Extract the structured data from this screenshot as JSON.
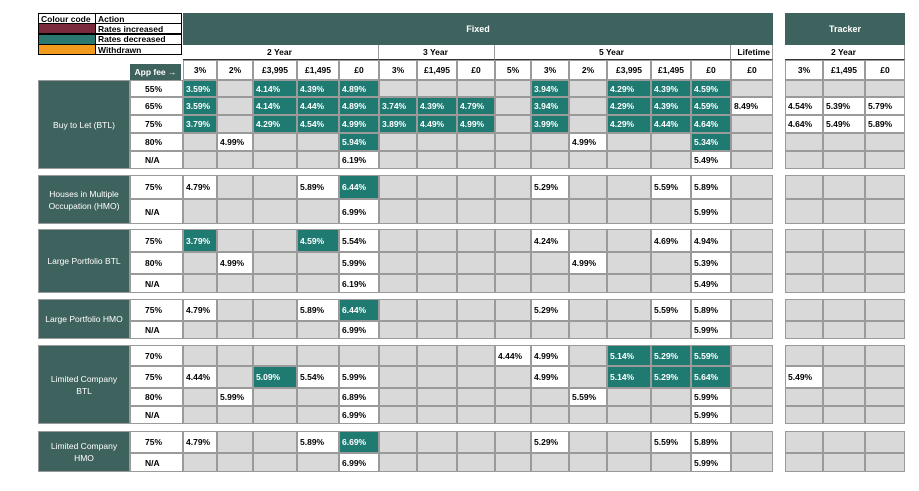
{
  "legend": {
    "title": "Colour code",
    "action_title": "Action",
    "items": [
      {
        "label": "Rates increased",
        "color": "#7a2a3c"
      },
      {
        "label": "Rates decreased",
        "color": "#2a7870"
      },
      {
        "label": "Withdrawn",
        "color": "#f29b1e"
      }
    ]
  },
  "fixed": {
    "title": "Fixed",
    "terms": [
      {
        "label": "2 Year",
        "fees": [
          "3%",
          "2%",
          "£3,995",
          "£1,495",
          "£0"
        ]
      },
      {
        "label": "3 Year",
        "fees": [
          "3%",
          "£1,495",
          "£0"
        ]
      },
      {
        "label": "5 Year",
        "fees": [
          "5%",
          "3%",
          "2%",
          "£3,995",
          "£1,495",
          "£0"
        ]
      },
      {
        "label": "Lifetime",
        "fees": [
          "£0"
        ]
      }
    ]
  },
  "tracker": {
    "title": "Tracker",
    "terms": [
      {
        "label": "2 Year",
        "fees": [
          "3%",
          "£1,495",
          "£0"
        ]
      }
    ]
  },
  "app_fee_label": "App fee →",
  "groups": [
    {
      "name": "Buy to Let (BTL)",
      "rows": [
        {
          "ltv": "55%",
          "cells": [
            {
              "text": "3.59%",
              "fill": "#1f7a72"
            },
            null,
            {
              "text": "4.14%",
              "fill": "#1f7a72"
            },
            {
              "text": "4.39%",
              "fill": "#1f7a72"
            },
            {
              "text": "4.89%",
              "fill": "#1f7a72"
            },
            null,
            null,
            null,
            null,
            {
              "text": "3.94%",
              "fill": "#1f7a72"
            },
            null,
            {
              "text": "4.29%",
              "fill": "#1f7a72"
            },
            {
              "text": "4.39%",
              "fill": "#1f7a72"
            },
            {
              "text": "4.59%",
              "fill": "#1f7a72"
            },
            null,
            null,
            null,
            null
          ]
        },
        {
          "ltv": "65%",
          "cells": [
            {
              "text": "3.59%",
              "fill": "#1f7a72"
            },
            null,
            {
              "text": "4.14%",
              "fill": "#1f7a72"
            },
            {
              "text": "4.44%",
              "fill": "#1f7a72"
            },
            {
              "text": "4.89%",
              "fill": "#1f7a72"
            },
            {
              "text": "3.74%",
              "fill": "#1f7a72"
            },
            {
              "text": "4.39%",
              "fill": "#1f7a72"
            },
            {
              "text": "4.79%",
              "fill": "#1f7a72"
            },
            null,
            {
              "text": "3.94%",
              "fill": "#1f7a72"
            },
            null,
            {
              "text": "4.29%",
              "fill": "#1f7a72"
            },
            {
              "text": "4.39%",
              "fill": "#1f7a72"
            },
            {
              "text": "4.59%",
              "fill": "#1f7a72"
            },
            "8.49%",
            "4.54%",
            "5.39%",
            "5.79%"
          ]
        },
        {
          "ltv": "75%",
          "cells": [
            {
              "text": "3.79%",
              "fill": "#1f7a72"
            },
            null,
            {
              "text": "4.29%",
              "fill": "#1f7a72"
            },
            {
              "text": "4.54%",
              "fill": "#1f7a72"
            },
            {
              "text": "4.99%",
              "fill": "#1f7a72"
            },
            {
              "text": "3.89%",
              "fill": "#1f7a72"
            },
            {
              "text": "4.49%",
              "fill": "#1f7a72"
            },
            {
              "text": "4.99%",
              "fill": "#1f7a72"
            },
            null,
            {
              "text": "3.99%",
              "fill": "#1f7a72"
            },
            null,
            {
              "text": "4.29%",
              "fill": "#1f7a72"
            },
            {
              "text": "4.44%",
              "fill": "#1f7a72"
            },
            {
              "text": "4.64%",
              "fill": "#1f7a72"
            },
            null,
            "4.64%",
            "5.49%",
            "5.89%"
          ]
        },
        {
          "ltv": "80%",
          "cells": [
            null,
            "4.99%",
            null,
            null,
            {
              "text": "5.94%",
              "fill": "#1f7a72"
            },
            null,
            null,
            null,
            null,
            null,
            "4.99%",
            null,
            null,
            {
              "text": "5.34%",
              "fill": "#1f7a72"
            },
            null,
            null,
            null,
            null
          ]
        },
        {
          "ltv": "N/A",
          "cells": [
            null,
            null,
            null,
            null,
            "6.19%",
            null,
            null,
            null,
            null,
            null,
            null,
            null,
            null,
            "5.49%",
            null,
            null,
            null,
            null
          ]
        }
      ]
    },
    {
      "name": "Houses in Multiple Occupation (HMO)",
      "rows": [
        {
          "ltv": "75%",
          "cells": [
            "4.79%",
            null,
            null,
            "5.89%",
            {
              "text": "6.44%",
              "fill": "#1f7a72"
            },
            null,
            null,
            null,
            null,
            "5.29%",
            null,
            null,
            "5.59%",
            "5.89%",
            null,
            null,
            null,
            null
          ]
        },
        {
          "ltv": "N/A",
          "cells": [
            null,
            null,
            null,
            null,
            "6.99%",
            null,
            null,
            null,
            null,
            null,
            null,
            null,
            null,
            "5.99%",
            null,
            null,
            null,
            null
          ]
        }
      ]
    },
    {
      "name": "Large Portfolio BTL",
      "rows": [
        {
          "ltv": "75%",
          "cells": [
            {
              "text": "3.79%",
              "fill": "#1f7a72"
            },
            null,
            null,
            {
              "text": "4.59%",
              "fill": "#1f7a72"
            },
            "5.54%",
            null,
            null,
            null,
            null,
            "4.24%",
            null,
            null,
            "4.69%",
            "4.94%",
            null,
            null,
            null,
            null
          ]
        },
        {
          "ltv": "80%",
          "cells": [
            null,
            "4.99%",
            null,
            null,
            "5.99%",
            null,
            null,
            null,
            null,
            null,
            "4.99%",
            null,
            null,
            "5.39%",
            null,
            null,
            null,
            null
          ]
        },
        {
          "ltv": "N/A",
          "cells": [
            null,
            null,
            null,
            null,
            "6.19%",
            null,
            null,
            null,
            null,
            null,
            null,
            null,
            null,
            "5.49%",
            null,
            null,
            null,
            null
          ]
        }
      ]
    },
    {
      "name": "Large Portfolio HMO",
      "rows": [
        {
          "ltv": "75%",
          "cells": [
            "4.79%",
            null,
            null,
            "5.89%",
            {
              "text": "6.44%",
              "fill": "#1f7a72"
            },
            null,
            null,
            null,
            null,
            "5.29%",
            null,
            null,
            "5.59%",
            "5.89%",
            null,
            null,
            null,
            null
          ]
        },
        {
          "ltv": "N/A",
          "cells": [
            null,
            null,
            null,
            null,
            "6.99%",
            null,
            null,
            null,
            null,
            null,
            null,
            null,
            null,
            "5.99%",
            null,
            null,
            null,
            null
          ]
        }
      ]
    },
    {
      "name": "Limited Company BTL",
      "rows": [
        {
          "ltv": "70%",
          "cells": [
            null,
            null,
            null,
            null,
            null,
            null,
            null,
            null,
            "4.44%",
            "4.99%",
            null,
            {
              "text": "5.14%",
              "fill": "#1f7a72"
            },
            {
              "text": "5.29%",
              "fill": "#1f7a72"
            },
            {
              "text": "5.59%",
              "fill": "#1f7a72"
            },
            null,
            null,
            null,
            null
          ]
        },
        {
          "ltv": "75%",
          "cells": [
            "4.44%",
            null,
            {
              "text": "5.09%",
              "fill": "#1f7a72"
            },
            "5.54%",
            "5.99%",
            null,
            null,
            null,
            null,
            "4.99%",
            null,
            {
              "text": "5.14%",
              "fill": "#1f7a72"
            },
            {
              "text": "5.29%",
              "fill": "#1f7a72"
            },
            {
              "text": "5.64%",
              "fill": "#1f7a72"
            },
            null,
            "5.49%",
            null,
            null
          ]
        },
        {
          "ltv": "80%",
          "cells": [
            null,
            "5.99%",
            null,
            null,
            "6.89%",
            null,
            null,
            null,
            null,
            null,
            "5.59%",
            null,
            null,
            "5.99%",
            null,
            null,
            null,
            null
          ]
        },
        {
          "ltv": "N/A",
          "cells": [
            null,
            null,
            null,
            null,
            "6.99%",
            null,
            null,
            null,
            null,
            null,
            null,
            null,
            null,
            "5.99%",
            null,
            null,
            null,
            null
          ]
        }
      ]
    },
    {
      "name": "Limited Company HMO",
      "rows": [
        {
          "ltv": "75%",
          "cells": [
            "4.79%",
            null,
            null,
            "5.89%",
            {
              "text": "6.69%",
              "fill": "#1f7a72"
            },
            null,
            null,
            null,
            null,
            "5.29%",
            null,
            null,
            "5.59%",
            "5.89%",
            null,
            null,
            null,
            null
          ]
        },
        {
          "ltv": "N/A",
          "cells": [
            null,
            null,
            null,
            null,
            "6.99%",
            null,
            null,
            null,
            null,
            null,
            null,
            null,
            null,
            "5.99%",
            null,
            null,
            null,
            null
          ]
        }
      ]
    }
  ]
}
